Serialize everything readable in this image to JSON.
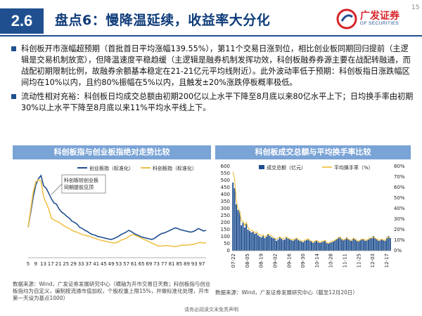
{
  "header": {
    "section_num": "2.6",
    "title": "盘点6：慢降温延续，收益率大分化",
    "logo_cn": "广发证券",
    "logo_en": "GF SECURITIES",
    "page": "15"
  },
  "bullets": [
    "科创板开市涨幅超预期（首批首日平均涨幅139.55%），第11个交易日涨到位，相比创业板同期回归提前（主逻辑是交易机制放宽），但降温速度平稳趋缓（主逻辑是融券机制发挥功效，科创板融券券源主要在战配转融通，而战配初期限制比例，故融券余额基本稳定在21-21亿元平均线附近）。此外波动率低于预期：科创板指日涨跌幅区间均在10%以内，且约80%振幅在5%以内，且触发±20%涨跌停板概率极低。",
    "流动性相对充裕：科创板日均成交总额由初期200亿以上水平下降至8月底以来80亿水平上下；日均换手率由初期30%以上水平下降至8月底以来11%平均水平线上下。"
  ],
  "colors": {
    "navy": "#1f4f8f",
    "yellow": "#f0c24a",
    "title_bg": "#7aa3d6",
    "bar": "#1f4f8f"
  },
  "footnotes": {
    "left": "数据来源：Wind，广发证券发展研究中心（横轴为开市交易日天数；科创板指与创业板指均为自定义，编制按流通市值加权，个股权重上限15%，并做标准化处理，开市第一天设为基点1000）",
    "watermark": "请务必阅读文末免责声明",
    "right": "数据来源：Wind，广发证券发展研究中心（截至12月20日）"
  },
  "chart_data": [
    {
      "type": "line",
      "title": "科创板指与创业板指绝对走势比较",
      "series": [
        {
          "name": "创业板指（标准化）",
          "color": "#1f4f8f",
          "values": [
            1000,
            1250,
            1500,
            1700,
            1800,
            1850,
            1680,
            1640,
            1560,
            1470,
            1400,
            1380,
            1300,
            1250,
            1220,
            1180,
            1150,
            1100,
            1080,
            1050,
            1000,
            980,
            950,
            930,
            900,
            880,
            870,
            850,
            840,
            830,
            820,
            810,
            800,
            810,
            830,
            850,
            880,
            900,
            920,
            950,
            930,
            900,
            880,
            860,
            840,
            830,
            820,
            810,
            800,
            820,
            850,
            880,
            900,
            910,
            930,
            950,
            970,
            990,
            980,
            960,
            950,
            940,
            930,
            920,
            930,
            950,
            980,
            960,
            940,
            950
          ]
        },
        {
          "name": "科创板指（标准化）",
          "color": "#f0c24a",
          "values": [
            1000,
            1300,
            1580,
            1750,
            1780,
            1760,
            1500,
            1400,
            1300,
            1150,
            1120,
            1100,
            1080,
            1050,
            1020,
            1000,
            980,
            950,
            930,
            920,
            900,
            880,
            870,
            860,
            850,
            830,
            820,
            800,
            790,
            780,
            770,
            760,
            750,
            745,
            745,
            760,
            790,
            800,
            820,
            850,
            870,
            880,
            860,
            840,
            820,
            800,
            780,
            760,
            740,
            720,
            700,
            690,
            690,
            700,
            700,
            690,
            690,
            680,
            690,
            700,
            705,
            705,
            710,
            715,
            720,
            730,
            745,
            750,
            745,
            745
          ]
        }
      ],
      "annotation": "科创板较创业板同期提前见顶",
      "x_ticks": [
        "5",
        "9",
        "13",
        "17",
        "21",
        "25",
        "29",
        "33",
        "37",
        "41",
        "45",
        "49",
        "53",
        "57",
        "61",
        "65",
        "69",
        "73",
        "77",
        "81",
        "85",
        "89",
        "93",
        "97"
      ],
      "ylim": [
        500,
        2000
      ]
    },
    {
      "type": "bar",
      "title": "科创板成交总额与平均换手率比较",
      "series": [
        {
          "name": "成交总额（亿元）",
          "type": "bar",
          "color": "#1f4f8f",
          "values": [
            485,
            445,
            330,
            290,
            280,
            180,
            200,
            165,
            190,
            150,
            140,
            130,
            135,
            120,
            125,
            110,
            100,
            95,
            105,
            90,
            100,
            115,
            105,
            95,
            90,
            85,
            70,
            80,
            95,
            85,
            75,
            80,
            95,
            85,
            80,
            75,
            70,
            80,
            85,
            75,
            70,
            65,
            60,
            70,
            75,
            80,
            70,
            65,
            55,
            65,
            70,
            60,
            55,
            60,
            65,
            70,
            55,
            50,
            55,
            60,
            65,
            75,
            85,
            95,
            100,
            85,
            75,
            80,
            95,
            85,
            75,
            70,
            90,
            80,
            70,
            65,
            75,
            85,
            80,
            70,
            75,
            80,
            90,
            95,
            105,
            90,
            80,
            70,
            75,
            80,
            75,
            70,
            95,
            105,
            90
          ]
        },
        {
          "name": "平均换手率（%）",
          "type": "line",
          "color": "#f0c24a",
          "values": [
            75,
            68,
            48,
            40,
            38,
            28,
            28,
            24,
            27,
            22,
            20,
            19,
            19,
            17,
            18,
            16,
            15,
            14,
            15,
            13,
            14,
            16,
            15,
            14,
            13,
            12,
            11,
            12,
            13,
            12,
            11,
            12,
            13,
            12,
            11,
            11,
            10,
            11,
            12,
            11,
            10,
            9,
            9,
            10,
            11,
            11,
            10,
            9,
            8,
            9,
            10,
            9,
            8,
            9,
            9,
            10,
            8,
            7,
            8,
            9,
            9,
            10,
            11,
            12,
            13,
            11,
            10,
            11,
            12,
            11,
            10,
            10,
            12,
            11,
            10,
            9,
            10,
            11,
            11,
            10,
            10,
            11,
            12,
            12,
            13,
            12,
            11,
            10,
            10,
            11,
            10,
            10,
            12,
            13,
            12
          ]
        }
      ],
      "x_ticks": [
        "07-22",
        "08-05",
        "08-19",
        "09-02",
        "09-16",
        "09-30",
        "10-14",
        "10-28",
        "11-11",
        "11-25",
        "12-03",
        "12-17"
      ],
      "ylim_left": [
        0,
        600
      ],
      "ylim_right": [
        0,
        80
      ],
      "y_ticks_left": [
        "0",
        "50",
        "100",
        "150",
        "200",
        "250",
        "300",
        "350",
        "400",
        "450",
        "500",
        "550",
        "600"
      ],
      "y_ticks_right": [
        "0%",
        "10%",
        "20%",
        "30%",
        "40%",
        "50%",
        "60%",
        "70%",
        "80%"
      ]
    }
  ]
}
